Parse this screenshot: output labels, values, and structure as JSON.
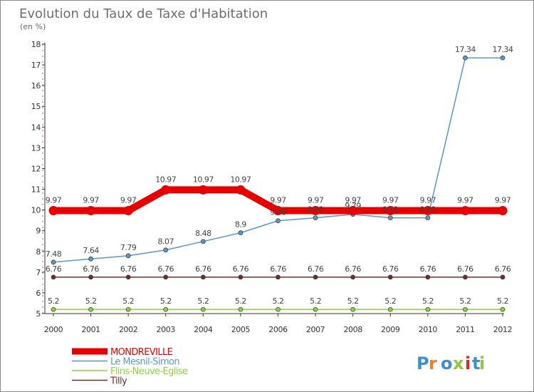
{
  "chart_data": {
    "type": "line",
    "title": "Evolution du Taux de Taxe d'Habitation",
    "subtitle": "(en %)",
    "x": [
      "2000",
      "2001",
      "2002",
      "2003",
      "2004",
      "2005",
      "2006",
      "2007",
      "2008",
      "2009",
      "2010",
      "2011",
      "2012"
    ],
    "ylim": [
      5,
      18
    ],
    "yticks": [
      5,
      6,
      7,
      8,
      9,
      10,
      11,
      12,
      13,
      14,
      15,
      16,
      17,
      18
    ],
    "grid": false,
    "legend_placement": "bottom-left",
    "series": [
      {
        "name": "MONDREVILLE",
        "color": "#e60000",
        "values": [
          9.97,
          9.97,
          9.97,
          10.97,
          10.97,
          10.97,
          9.97,
          9.97,
          9.97,
          9.97,
          9.97,
          9.97,
          9.97
        ],
        "labels": [
          "9.97",
          "9.97",
          "9.97",
          "10.97",
          "10.97",
          "10.97",
          "9.97",
          "9.97",
          "9.97",
          "9.97",
          "9.97",
          "9.97",
          "9.97"
        ]
      },
      {
        "name": "Le Mesnil-Simon",
        "color": "#5b96c8",
        "values": [
          7.48,
          7.64,
          7.79,
          8.07,
          8.48,
          8.9,
          9.48,
          9.62,
          9.79,
          9.62,
          9.62,
          17.34,
          17.34
        ],
        "labels": [
          "7.48",
          "7.64",
          "7.79",
          "8.07",
          "8.48",
          "8.9",
          "9.48",
          "9.62",
          "9.79",
          "9.62",
          "9.62",
          "17.34",
          "17.34"
        ]
      },
      {
        "name": "Flins-Neuve-Eglise",
        "color": "#8ed13c",
        "values": [
          5.2,
          5.2,
          5.2,
          5.2,
          5.2,
          5.2,
          5.2,
          5.2,
          5.2,
          5.2,
          5.2,
          5.2,
          5.2
        ],
        "labels": [
          "5.2",
          "5.2",
          "5.2",
          "5.2",
          "5.2",
          "5.2",
          "5.2",
          "5.2",
          "5.2",
          "5.2",
          "5.2",
          "5.2",
          "5.2"
        ]
      },
      {
        "name": "Tilly",
        "color": "#6e2e2e",
        "values": [
          6.76,
          6.76,
          6.76,
          6.76,
          6.76,
          6.76,
          6.76,
          6.76,
          6.76,
          6.76,
          6.76,
          6.76,
          6.76
        ],
        "labels": [
          "6.76",
          "6.76",
          "6.76",
          "6.76",
          "6.76",
          "6.76",
          "6.76",
          "6.76",
          "6.76",
          "6.76",
          "6.76",
          "6.76",
          "6.76"
        ]
      }
    ]
  },
  "logo": {
    "text": "Proxiti"
  }
}
